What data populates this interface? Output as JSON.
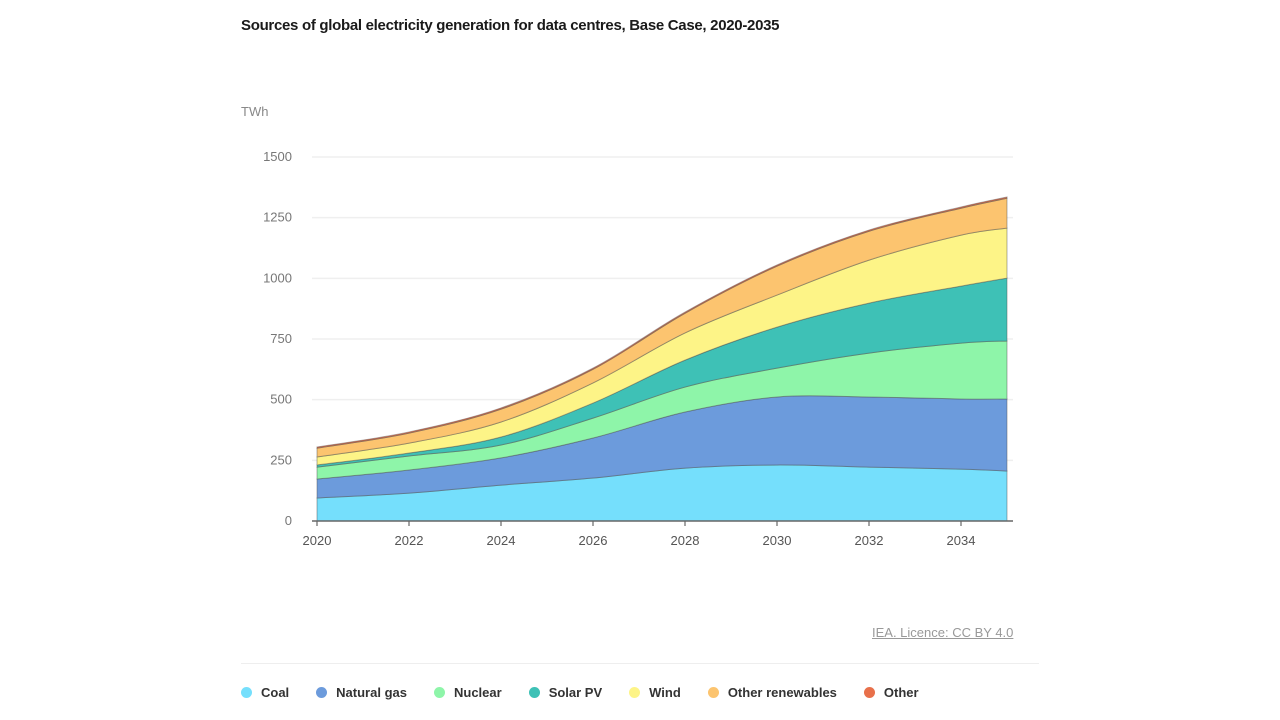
{
  "title": "Sources of global electricity generation for data centres, Base Case, 2020-2035",
  "credit": "IEA. Licence: CC BY 4.0",
  "chart_data": {
    "type": "area",
    "stacked": true,
    "title": "Sources of global electricity generation for data centres, Base Case, 2020-2035",
    "ylabel": "TWh",
    "xlabel": "",
    "ylim": [
      0,
      1500
    ],
    "xlim": [
      2020,
      2035
    ],
    "yticks": [
      "0",
      "250",
      "500",
      "750",
      "1000",
      "1250",
      "1500"
    ],
    "xticks": [
      "2020",
      "2022",
      "2024",
      "2026",
      "2028",
      "2030",
      "2032",
      "2034"
    ],
    "grid": true,
    "legend": "bottom",
    "x": [
      2020,
      2022,
      2024,
      2026,
      2028,
      2030,
      2032,
      2034,
      2035
    ],
    "series": [
      {
        "name": "Coal",
        "color": "#75dffc",
        "values": [
          95,
          115,
          148,
          177,
          218,
          231,
          222,
          214,
          206
        ]
      },
      {
        "name": "Natural gas",
        "color": "#6c9bdc",
        "values": [
          78,
          95,
          112,
          165,
          231,
          280,
          289,
          289,
          297
        ]
      },
      {
        "name": "Nuclear",
        "color": "#8ef5a9",
        "values": [
          49,
          58,
          53,
          82,
          103,
          119,
          181,
          230,
          239
        ]
      },
      {
        "name": "Solar PV",
        "color": "#3ec1b6",
        "values": [
          9,
          12,
          33,
          62,
          111,
          169,
          206,
          235,
          259
        ]
      },
      {
        "name": "Wind",
        "color": "#fdf487",
        "values": [
          33,
          41,
          62,
          83,
          112,
          132,
          177,
          210,
          206
        ]
      },
      {
        "name": "Other renewables",
        "color": "#fcc46f",
        "values": [
          36,
          41,
          53,
          56,
          81,
          119,
          119,
          111,
          123
        ]
      },
      {
        "name": "Other",
        "color": "#e8704a",
        "values": [
          5,
          5,
          5,
          5,
          5,
          5,
          5,
          5,
          5
        ]
      }
    ]
  }
}
